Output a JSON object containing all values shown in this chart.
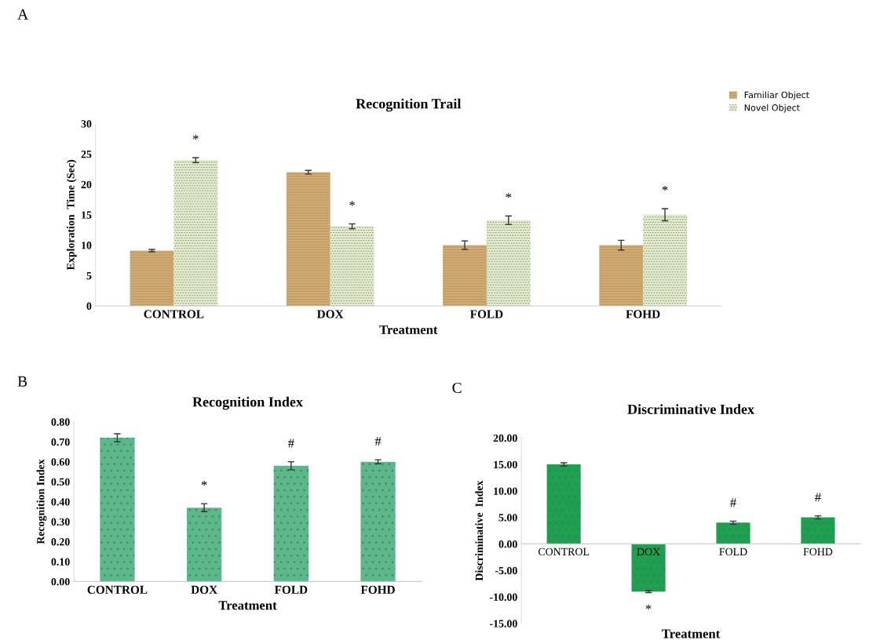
{
  "chart_data": [
    {
      "type": "bar",
      "title": "Recognition Trail",
      "xlabel": "Treatment",
      "ylabel": "Exploration  Time (Sec)",
      "categories": [
        "CONTROL",
        "DOX",
        "FOLD",
        "FOHD"
      ],
      "series": [
        {
          "name": "Familiar Object",
          "color": "#d2ae78",
          "values": [
            9.1,
            22,
            10,
            10
          ],
          "errors": [
            0.2,
            0.3,
            0.7,
            0.8
          ]
        },
        {
          "name": "Novel Object",
          "color": "#e8efd2",
          "values": [
            24,
            13.1,
            14.1,
            15
          ],
          "errors": [
            0.4,
            0.4,
            0.7,
            1.0
          ]
        }
      ],
      "ylim": [
        0,
        30
      ],
      "yticks": [
        0,
        5,
        10,
        15,
        20,
        25,
        30
      ],
      "grid": false,
      "legend": "top right",
      "annotations": [
        "A",
        {
          "text": "*",
          "x": "CONTROL",
          "y": 24
        },
        {
          "text": "*",
          "x": "DOX",
          "y": 13.1
        },
        {
          "text": "*",
          "x": "FOLD",
          "y": 14.1
        },
        {
          "text": "*",
          "x": "FOHD",
          "y": 15
        }
      ]
    },
    {
      "type": "bar",
      "title": "Recognition Index",
      "xlabel": "Treatment",
      "ylabel": "Recognition Index",
      "categories": [
        "CONTROL",
        "DOX",
        "FOLD",
        "FOHD"
      ],
      "series": [
        {
          "color": "#5cb88a",
          "values": [
            0.72,
            0.37,
            0.58,
            0.6
          ],
          "errors": [
            0.02,
            0.02,
            0.02,
            0.01
          ]
        }
      ],
      "ylim": [
        0,
        0.8
      ],
      "yticks": [
        {
          "value": 0,
          "label": "0.00"
        },
        {
          "value": 0.1,
          "label": "0.10"
        },
        {
          "value": 0.2,
          "label": "0.20"
        },
        {
          "value": 0.3,
          "label": "0.30"
        },
        {
          "value": 0.4,
          "label": "0.40"
        },
        {
          "value": 0.5,
          "label": "0.50"
        },
        {
          "value": 0.6,
          "label": "0.60"
        },
        {
          "value": 0.7,
          "label": "0.70"
        },
        {
          "value": 0.8,
          "label": "0.80"
        }
      ],
      "grid": false,
      "annotations": [
        "B",
        {
          "text": "*",
          "x": "DOX",
          "y": 0.37
        },
        {
          "text": "#",
          "x": "FOLD",
          "y": 0.58
        },
        {
          "text": "#",
          "x": "FOHD",
          "y": 0.6
        }
      ]
    },
    {
      "type": "bar",
      "title": "Discriminative Index",
      "xlabel": "Treatment",
      "ylabel": "Discriminative  Index",
      "categories": [
        "CONTROL",
        "DOX",
        "FOLD",
        "FOHD"
      ],
      "series": [
        {
          "color": "#1ea050",
          "values": [
            15.0,
            -9.0,
            4.0,
            5.0
          ],
          "errors": [
            0.3,
            0.2,
            0.3,
            0.3
          ]
        }
      ],
      "ylim": [
        -15,
        20
      ],
      "yticks": [
        {
          "value": -15,
          "label": "-15.00"
        },
        {
          "value": -10,
          "label": "-10.00"
        },
        {
          "value": -5,
          "label": "-5.00"
        },
        {
          "value": 0,
          "label": "0.00"
        },
        {
          "value": 5,
          "label": "5.00"
        },
        {
          "value": 10,
          "label": "10.00"
        },
        {
          "value": 15,
          "label": "15.00"
        },
        {
          "value": 20,
          "label": "20.00"
        }
      ],
      "grid": false,
      "annotations": [
        "C",
        {
          "text": "*",
          "x": "DOX",
          "y": -9.0
        },
        {
          "text": "#",
          "x": "FOLD",
          "y": 4.0
        },
        {
          "text": "#",
          "x": "FOHD",
          "y": 5.0
        }
      ]
    }
  ]
}
